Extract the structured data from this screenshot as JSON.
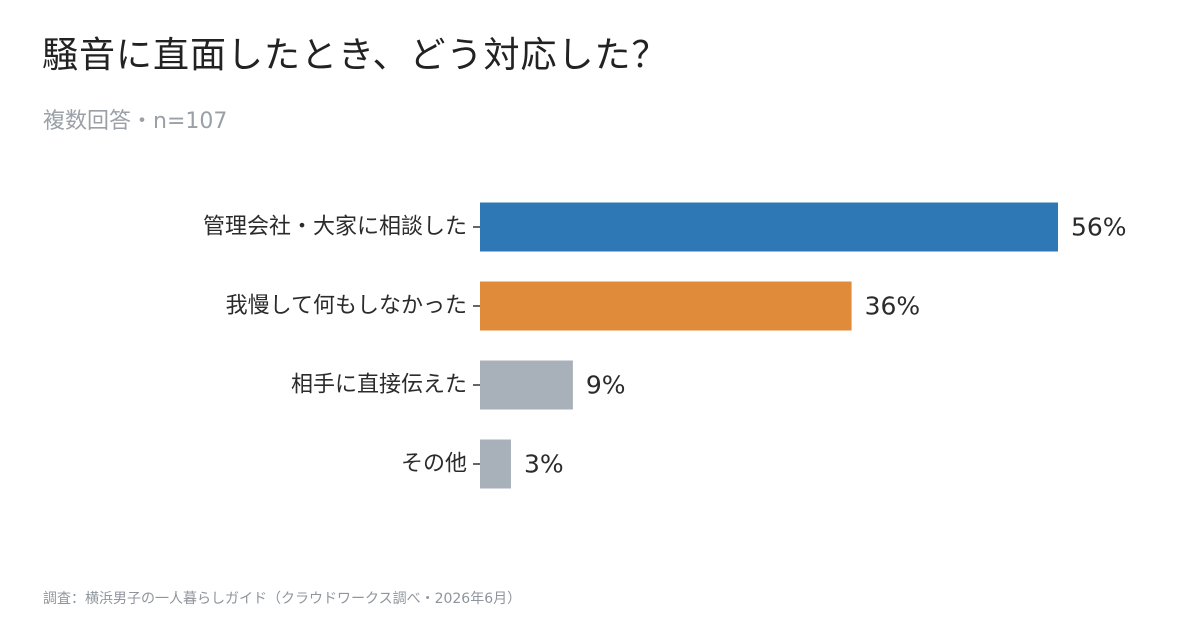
{
  "title": "騒音に直面したとき、どう対応した？",
  "subtitle": "複数回答・n=107",
  "footer": "調査：横浜男子の一人暮らしガイド（クラウドワークス調べ・2026年6月）",
  "chart_data": {
    "type": "bar",
    "orientation": "horizontal",
    "categories": [
      "管理会社・大家に相談した",
      "我慢して何もしなかった",
      "相手に直接伝えた",
      "その他"
    ],
    "values": [
      56,
      36,
      9,
      3
    ],
    "value_labels": [
      "56%",
      "36%",
      "9%",
      "3%"
    ],
    "colors": [
      "#2e79b5",
      "#e08b3a",
      "#a8b1ba",
      "#a8b1ba"
    ],
    "xlim": [
      0,
      56
    ],
    "grid": false
  }
}
